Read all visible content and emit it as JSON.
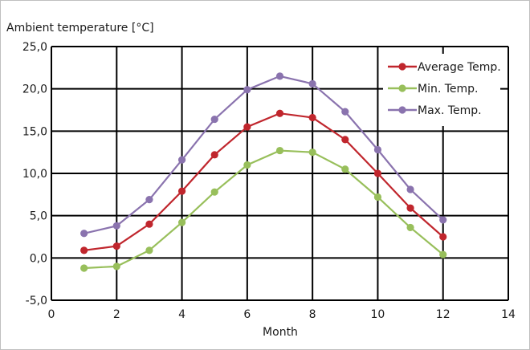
{
  "chart_data": {
    "type": "line",
    "title": "Ambient temperature [°C]",
    "xlabel": "Month",
    "ylabel": "",
    "xlim": [
      0,
      14
    ],
    "ylim": [
      -5,
      25
    ],
    "x_ticks": [
      0,
      2,
      4,
      6,
      8,
      10,
      12,
      14
    ],
    "y_ticks": [
      -5,
      0,
      5,
      10,
      15,
      20,
      25
    ],
    "y_tick_labels": [
      "-5,0",
      "0,0",
      "5,0",
      "10,0",
      "15,0",
      "20,0",
      "25,0"
    ],
    "grid": true,
    "legend_position": "top-right",
    "x": [
      1,
      2,
      3,
      4,
      5,
      6,
      7,
      8,
      9,
      10,
      11,
      12
    ],
    "series": [
      {
        "name": "Average Temp.",
        "color": "#c0262d",
        "values": [
          0.9,
          1.4,
          4.0,
          7.9,
          12.2,
          15.5,
          17.1,
          16.6,
          14.0,
          10.0,
          5.9,
          2.5
        ]
      },
      {
        "name": "Min. Temp.",
        "color": "#98bf5b",
        "values": [
          -1.2,
          -1.0,
          0.9,
          4.2,
          7.8,
          11.0,
          12.7,
          12.5,
          10.5,
          7.2,
          3.6,
          0.4
        ]
      },
      {
        "name": "Max. Temp.",
        "color": "#8a73ae",
        "values": [
          2.9,
          3.8,
          6.9,
          11.6,
          16.4,
          19.9,
          21.5,
          20.6,
          17.3,
          12.8,
          8.1,
          4.5
        ]
      }
    ]
  }
}
